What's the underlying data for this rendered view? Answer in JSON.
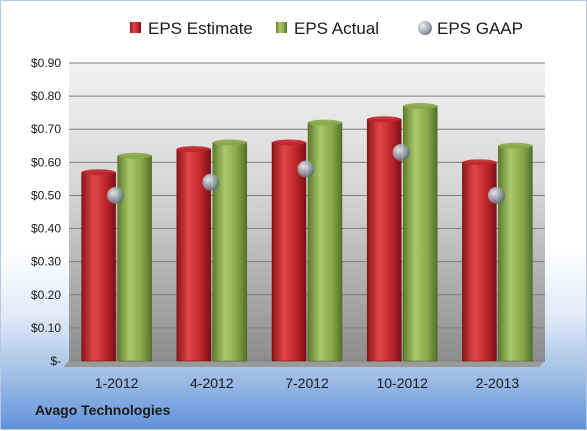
{
  "footer": {
    "company": "Avago Technologies"
  },
  "colors": {
    "estimate": "#c0262c",
    "actual": "#8aa94a",
    "gaap": "#9aa5b1",
    "plot_bg_top": "#f2f2f2",
    "plot_bg_bottom": "#8c8c8c"
  },
  "chart_data": {
    "type": "bar",
    "title": "",
    "xlabel": "",
    "ylabel": "",
    "categories": [
      "1-2012",
      "4-2012",
      "7-2012",
      "10-2012",
      "2-2013"
    ],
    "series": [
      {
        "name": "EPS Estimate",
        "kind": "bar",
        "values": [
          0.57,
          0.64,
          0.66,
          0.73,
          0.6
        ]
      },
      {
        "name": "EPS Actual",
        "kind": "bar",
        "values": [
          0.62,
          0.66,
          0.72,
          0.77,
          0.65
        ]
      },
      {
        "name": "EPS GAAP",
        "kind": "marker",
        "values": [
          0.5,
          0.54,
          0.58,
          0.63,
          0.5
        ]
      }
    ],
    "ylim": [
      0,
      0.9
    ],
    "yticks": [
      0,
      0.1,
      0.2,
      0.3,
      0.4,
      0.5,
      0.6,
      0.7,
      0.8,
      0.9
    ],
    "ytick_labels": [
      "$-",
      "$0.10",
      "$0.20",
      "$0.30",
      "$0.40",
      "$0.50",
      "$0.60",
      "$0.70",
      "$0.80",
      "$0.90"
    ],
    "grid": true,
    "legend": "top"
  }
}
